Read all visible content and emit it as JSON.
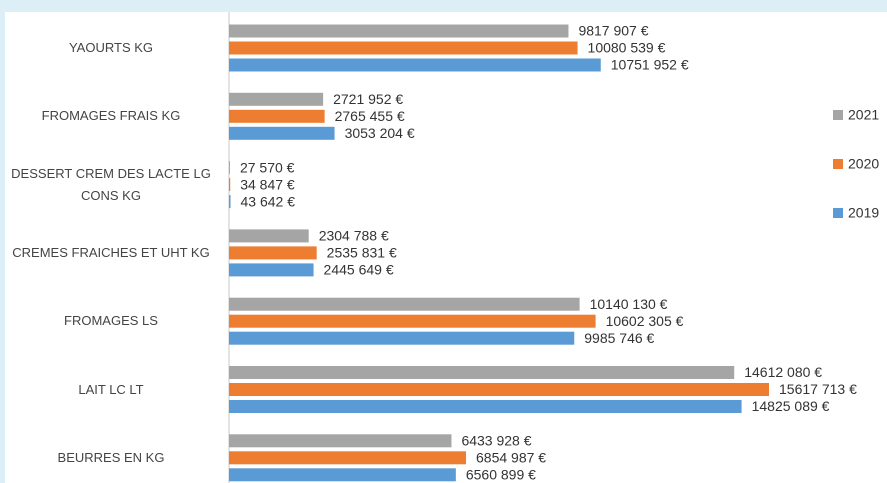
{
  "chart_data": {
    "type": "bar",
    "orientation": "horizontal",
    "categories": [
      "YAOURTS KG",
      "FROMAGES FRAIS KG",
      "DESSERT CREM DES LACTE LG CONS KG",
      "CREMES FRAICHES ET UHT KG",
      "FROMAGES LS",
      "LAIT LC LT",
      "BEURRES EN KG"
    ],
    "series": [
      {
        "name": "2021",
        "color": "#a5a5a5",
        "values": [
          9817907,
          2721952,
          27570,
          2304788,
          10140130,
          14612080,
          6433928
        ],
        "value_labels": [
          "9817 907 €",
          "2721 952 €",
          "27 570 €",
          "2304 788 €",
          "10140 130 €",
          "14612 080 €",
          "6433 928 €"
        ]
      },
      {
        "name": "2020",
        "color": "#ed7d31",
        "values": [
          10080539,
          2765455,
          34847,
          2535831,
          10602305,
          15617713,
          6854987
        ],
        "value_labels": [
          "10080 539 €",
          "2765 455 €",
          "34 847 €",
          "2535 831 €",
          "10602 305 €",
          "15617 713 €",
          "6854 987 €"
        ]
      },
      {
        "name": "2019",
        "color": "#5b9bd5",
        "values": [
          10751952,
          3053204,
          43642,
          2445649,
          9985746,
          14825089,
          6560899
        ],
        "value_labels": [
          "10751 952 €",
          "3053 204 €",
          "43 642 €",
          "2445 649 €",
          "9985 746 €",
          "14825 089 €",
          "6560 899 €"
        ]
      }
    ],
    "legend": "right"
  }
}
